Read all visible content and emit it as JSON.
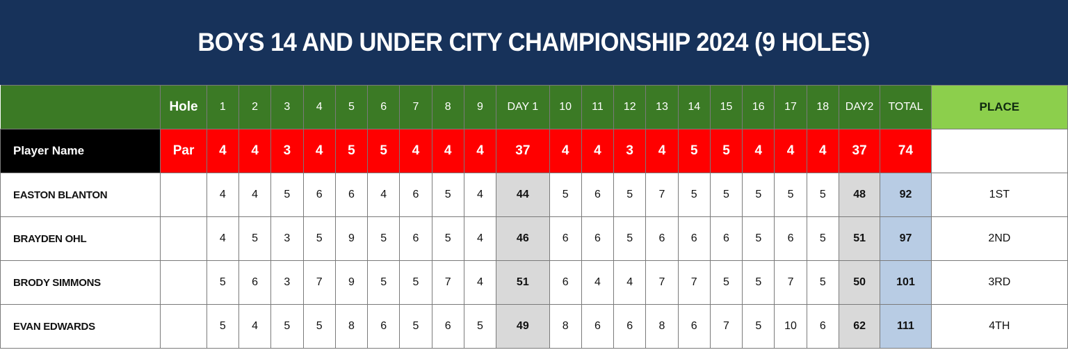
{
  "title": "BOYS 14 AND UNDER CITY CHAMPIONSHIP 2024 (9 HOLES)",
  "header": {
    "hole_label": "Hole",
    "columns": [
      "1",
      "2",
      "3",
      "4",
      "5",
      "6",
      "7",
      "8",
      "9",
      "DAY 1",
      "10",
      "11",
      "12",
      "13",
      "14",
      "15",
      "16",
      "17",
      "18",
      "DAY2",
      "TOTAL"
    ],
    "place_label": "PLACE"
  },
  "par_row": {
    "player_label": "Player Name",
    "par_label": "Par",
    "values": [
      "4",
      "4",
      "3",
      "4",
      "5",
      "5",
      "4",
      "4",
      "4",
      "37",
      "4",
      "4",
      "3",
      "4",
      "5",
      "5",
      "4",
      "4",
      "4",
      "37",
      "74"
    ]
  },
  "players": [
    {
      "name": "EASTON BLANTON",
      "scores": [
        "4",
        "4",
        "5",
        "6",
        "6",
        "4",
        "6",
        "5",
        "4",
        "44",
        "5",
        "6",
        "5",
        "7",
        "5",
        "5",
        "5",
        "5",
        "5",
        "48",
        "92"
      ],
      "place": "1ST"
    },
    {
      "name": "BRAYDEN OHL",
      "scores": [
        "4",
        "5",
        "3",
        "5",
        "9",
        "5",
        "6",
        "5",
        "4",
        "46",
        "6",
        "6",
        "5",
        "6",
        "6",
        "6",
        "5",
        "6",
        "5",
        "51",
        "97"
      ],
      "place": "2ND"
    },
    {
      "name": "BRODY SIMMONS",
      "scores": [
        "5",
        "6",
        "3",
        "7",
        "9",
        "5",
        "5",
        "7",
        "4",
        "51",
        "6",
        "4",
        "4",
        "7",
        "7",
        "5",
        "5",
        "7",
        "5",
        "50",
        "101"
      ],
      "place": "3RD"
    },
    {
      "name": "EVAN EDWARDS",
      "scores": [
        "5",
        "4",
        "5",
        "5",
        "8",
        "6",
        "5",
        "6",
        "5",
        "49",
        "8",
        "6",
        "6",
        "8",
        "6",
        "7",
        "5",
        "10",
        "6",
        "62",
        "111"
      ],
      "place": "4TH"
    }
  ]
}
